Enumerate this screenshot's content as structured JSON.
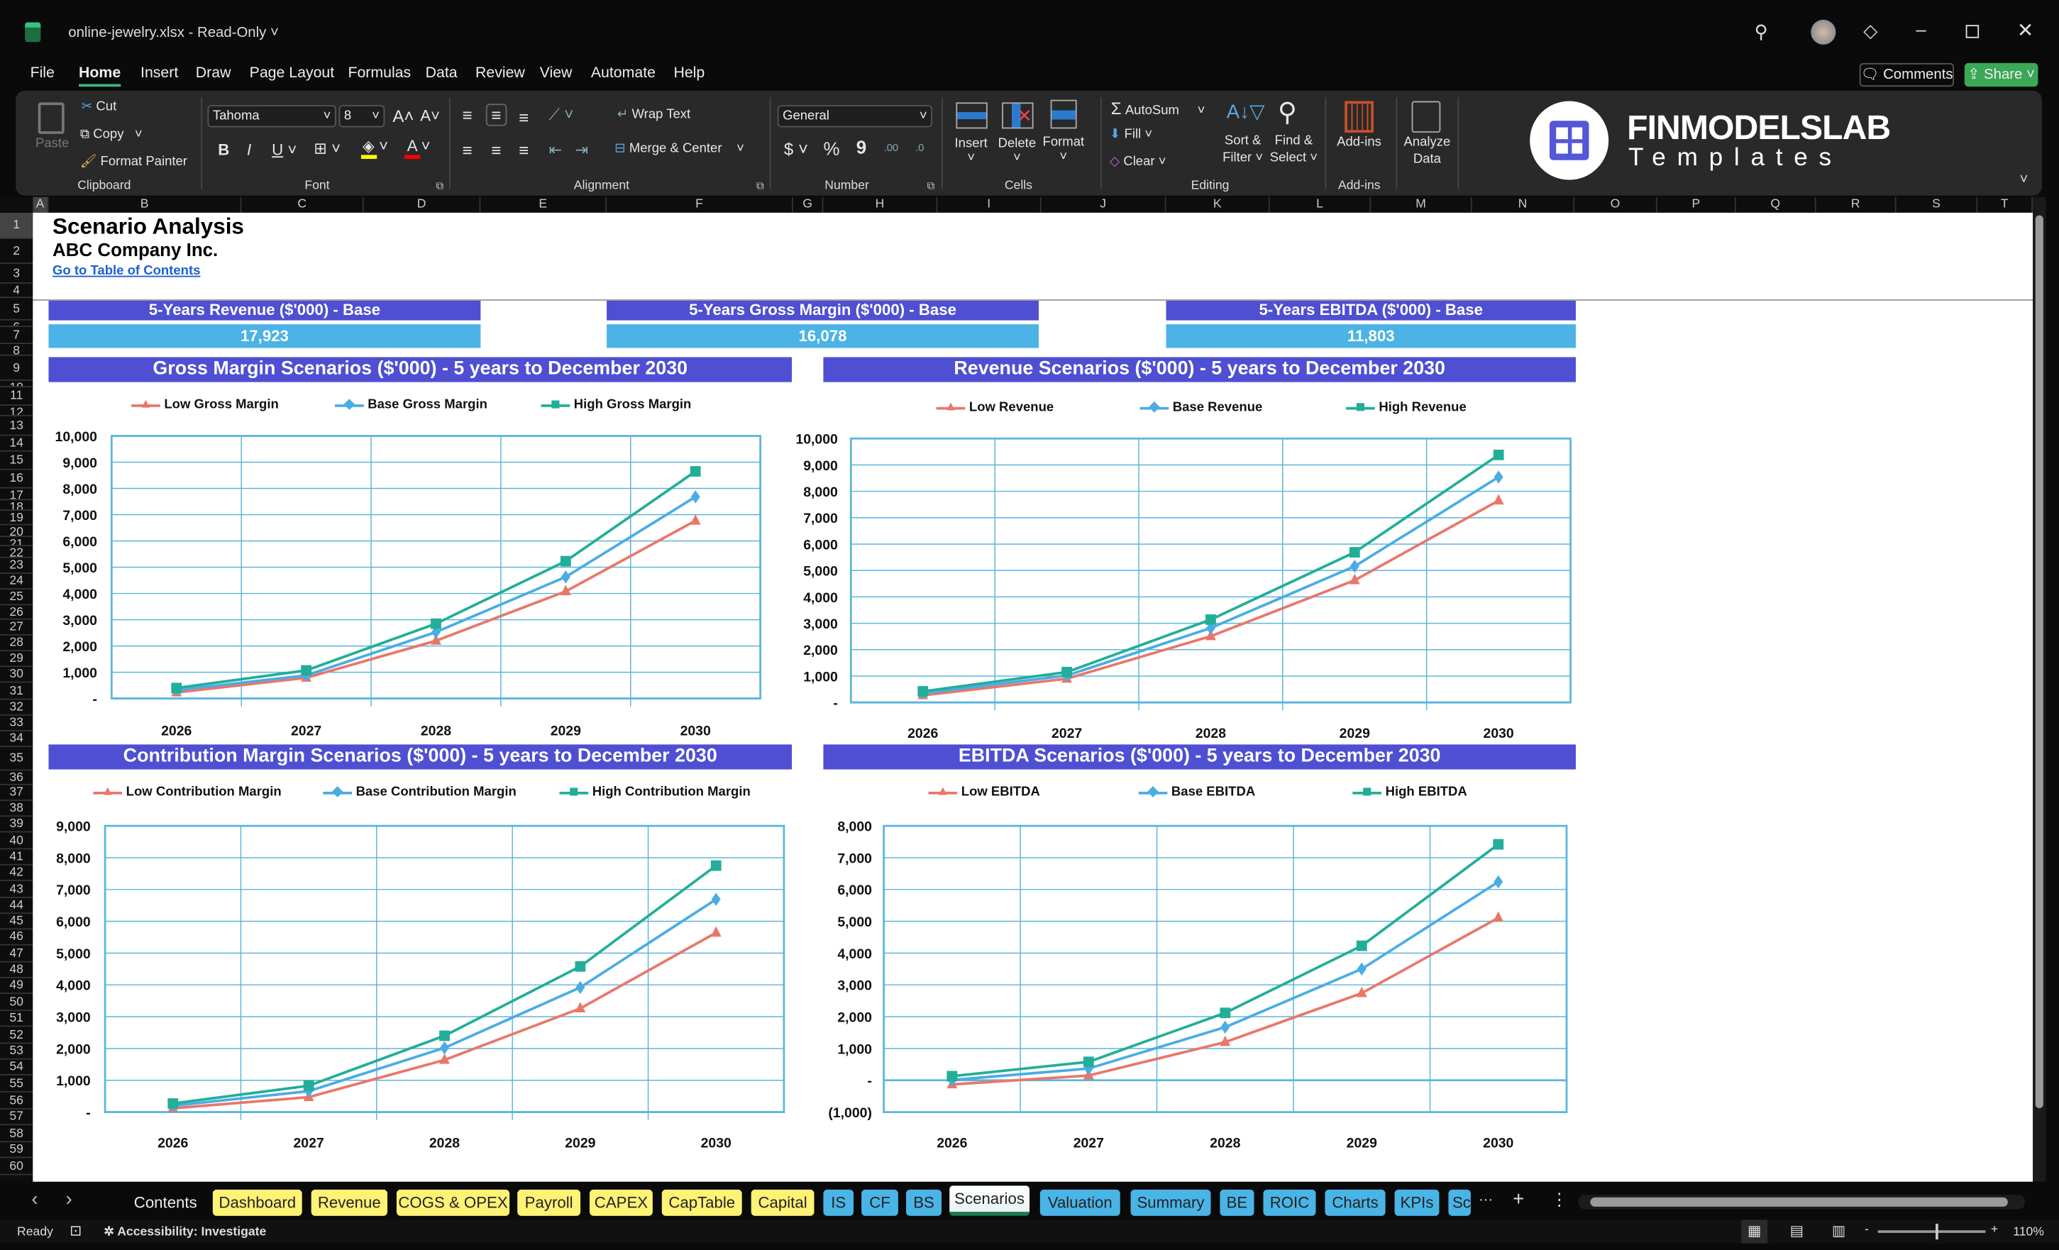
{
  "window": {
    "title": "online-jewelry.xlsx  -  Read-Only",
    "title_caret": "˅"
  },
  "menu": [
    "File",
    "Home",
    "Insert",
    "Draw",
    "Page Layout",
    "Formulas",
    "Data",
    "Review",
    "View",
    "Automate",
    "Help"
  ],
  "menu_active": "Home",
  "actions": {
    "comments": "Comments",
    "share": "Share"
  },
  "ribbon": {
    "clipboard": {
      "paste": "Paste",
      "cut": "Cut",
      "copy": "Copy",
      "format_painter": "Format Painter",
      "label": "Clipboard"
    },
    "font": {
      "name": "Tahoma",
      "size": "8",
      "bold": "B",
      "italic": "I",
      "underline": "U",
      "label": "Font",
      "fill_color": "#FFFF00",
      "font_color": "#FF0000"
    },
    "alignment": {
      "wrap_text": "Wrap Text",
      "merge_center": "Merge & Center",
      "label": "Alignment"
    },
    "number": {
      "format": "General",
      "currency": "$",
      "percent": "%",
      "comma": "9",
      "inc_decimal": ".00",
      "dec_decimal": ".0",
      "label": "Number"
    },
    "cells": {
      "insert": "Insert",
      "delete": "Delete",
      "format": "Format",
      "label": "Cells"
    },
    "editing": {
      "autosum": "AutoSum",
      "fill": "Fill",
      "clear": "Clear",
      "sort_filter_1": "Sort &",
      "sort_filter_2": "Filter",
      "find_select_1": "Find &",
      "find_select_2": "Select",
      "label": "Editing"
    },
    "addins": {
      "addins": "Add-ins",
      "label": "Add-ins"
    },
    "analyze": {
      "line1": "Analyze",
      "line2": "Data"
    }
  },
  "logo": {
    "name": "FINMODELSLAB",
    "sub": "Templates"
  },
  "columns": [
    "A",
    "B",
    "C",
    "D",
    "E",
    "F",
    "G",
    "H",
    "I",
    "J",
    "K",
    "L",
    "M",
    "N",
    "O",
    "P",
    "Q",
    "R",
    "S",
    "T"
  ],
  "rows": [
    "1",
    "2",
    "3",
    "4",
    "5",
    "6",
    "7",
    "8",
    "9",
    "10",
    "11",
    "12",
    "13",
    "14",
    "15",
    "16",
    "17",
    "18",
    "19",
    "20",
    "21",
    "22",
    "23",
    "24",
    "25",
    "26",
    "27",
    "28",
    "29",
    "30",
    "31",
    "32",
    "33",
    "34",
    "35",
    "36",
    "37",
    "38",
    "39",
    "40",
    "41",
    "42",
    "43",
    "44",
    "45",
    "46",
    "47",
    "48",
    "49",
    "50",
    "51",
    "52",
    "53",
    "54",
    "55",
    "56",
    "57",
    "58",
    "59",
    "60"
  ],
  "sheet": {
    "title": "Scenario Analysis",
    "company": "ABC Company Inc.",
    "link": "Go to Table of Contents",
    "kpis": [
      {
        "label": "5-Years Revenue ($'000) - Base",
        "value": "17,923"
      },
      {
        "label": "5-Years Gross Margin ($'000) - Base",
        "value": "16,078"
      },
      {
        "label": "5-Years EBITDA ($'000) - Base",
        "value": "11,803"
      }
    ]
  },
  "colors": {
    "low": "#E8776A",
    "base": "#4BACE4",
    "high": "#22AE98",
    "header": "#4E4FD2",
    "kpi_value": "#4BB3E6",
    "grid": "#5BB6DB"
  },
  "chart_data": [
    {
      "type": "line",
      "title": "Gross Margin Scenarios ($'000) - 5 years to December 2030",
      "categories": [
        "2026",
        "2027",
        "2028",
        "2029",
        "2030"
      ],
      "ylim": [
        0,
        10000
      ],
      "yticks": [
        "-",
        "1,000",
        "2,000",
        "3,000",
        "4,000",
        "5,000",
        "6,000",
        "7,000",
        "8,000",
        "9,000",
        "10,000"
      ],
      "legend": "top",
      "grid": true,
      "series": [
        {
          "name": "Low Gross Margin",
          "values": [
            230,
            790,
            2200,
            4080,
            6770
          ]
        },
        {
          "name": "Base Gross Margin",
          "values": [
            320,
            880,
            2530,
            4630,
            7680
          ]
        },
        {
          "name": "High Gross Margin",
          "values": [
            400,
            1070,
            2850,
            5230,
            8650
          ]
        }
      ]
    },
    {
      "type": "line",
      "title": "Revenue Scenarios ($'000) - 5 years to December 2030",
      "categories": [
        "2026",
        "2027",
        "2028",
        "2029",
        "2030"
      ],
      "ylim": [
        0,
        10000
      ],
      "yticks": [
        "-",
        "1,000",
        "2,000",
        "3,000",
        "4,000",
        "5,000",
        "6,000",
        "7,000",
        "8,000",
        "9,000",
        "10,000"
      ],
      "legend": "top",
      "grid": true,
      "series": [
        {
          "name": "Low Revenue",
          "values": [
            270,
            900,
            2510,
            4630,
            7650
          ]
        },
        {
          "name": "Base Revenue",
          "values": [
            350,
            1020,
            2820,
            5160,
            8540
          ]
        },
        {
          "name": "High Revenue",
          "values": [
            420,
            1150,
            3140,
            5690,
            9380
          ]
        }
      ]
    },
    {
      "type": "line",
      "title": "Contribution Margin Scenarios ($'000) - 5 years to December 2030",
      "categories": [
        "2026",
        "2027",
        "2028",
        "2029",
        "2030"
      ],
      "ylim": [
        0,
        9000
      ],
      "yticks": [
        "-",
        "1,000",
        "2,000",
        "3,000",
        "4,000",
        "5,000",
        "6,000",
        "7,000",
        "8,000",
        "9,000"
      ],
      "legend": "top",
      "grid": true,
      "series": [
        {
          "name": "Low Contribution Margin",
          "values": [
            120,
            470,
            1640,
            3260,
            5640
          ]
        },
        {
          "name": "Base Contribution Margin",
          "values": [
            200,
            660,
            2020,
            3920,
            6690
          ]
        },
        {
          "name": "High Contribution Margin",
          "values": [
            270,
            830,
            2400,
            4580,
            7750
          ]
        }
      ]
    },
    {
      "type": "line",
      "title": "EBITDA Scenarios ($'000) - 5 years to December 2030",
      "categories": [
        "2026",
        "2027",
        "2028",
        "2029",
        "2030"
      ],
      "ylim": [
        -1000,
        8000
      ],
      "yticks": [
        "(1,000)",
        "-",
        "1,000",
        "2,000",
        "3,000",
        "4,000",
        "5,000",
        "6,000",
        "7,000",
        "8,000"
      ],
      "legend": "top",
      "grid": true,
      "series": [
        {
          "name": "Low EBITDA",
          "values": [
            -130,
            150,
            1200,
            2740,
            5110
          ]
        },
        {
          "name": "Base EBITDA",
          "values": [
            10,
            370,
            1670,
            3500,
            6240
          ]
        },
        {
          "name": "High EBITDA",
          "values": [
            130,
            580,
            2120,
            4230,
            7420
          ]
        }
      ]
    }
  ],
  "sheet_tabs": [
    {
      "label": "Contents",
      "color": "none"
    },
    {
      "label": "Dashboard",
      "color": "#FFF275"
    },
    {
      "label": "Revenue",
      "color": "#FFF275"
    },
    {
      "label": "COGS & OPEX",
      "color": "#FFF275"
    },
    {
      "label": "Payroll",
      "color": "#FFF275"
    },
    {
      "label": "CAPEX",
      "color": "#FFF275"
    },
    {
      "label": "CapTable",
      "color": "#FFF275"
    },
    {
      "label": "Capital",
      "color": "#FFF275"
    },
    {
      "label": "IS",
      "color": "#4AB4E6"
    },
    {
      "label": "CF",
      "color": "#4AB4E6"
    },
    {
      "label": "BS",
      "color": "#4AB4E6"
    },
    {
      "label": "Scenarios",
      "color": "active"
    },
    {
      "label": "Valuation",
      "color": "#4AB4E6"
    },
    {
      "label": "Summary",
      "color": "#4AB4E6"
    },
    {
      "label": "BE",
      "color": "#4AB4E6"
    },
    {
      "label": "ROIC",
      "color": "#4AB4E6"
    },
    {
      "label": "Charts",
      "color": "#4AB4E6"
    },
    {
      "label": "KPIs",
      "color": "#4AB4E6"
    },
    {
      "label": "Sc",
      "color": "#4AB4E6"
    }
  ],
  "tab_controls": {
    "more": "···",
    "add": "+",
    "options": "⋮",
    "prev": "‹",
    "next": "›"
  },
  "status": {
    "ready": "Ready",
    "accessibility": "Accessibility: Investigate",
    "zoom": "110%"
  }
}
